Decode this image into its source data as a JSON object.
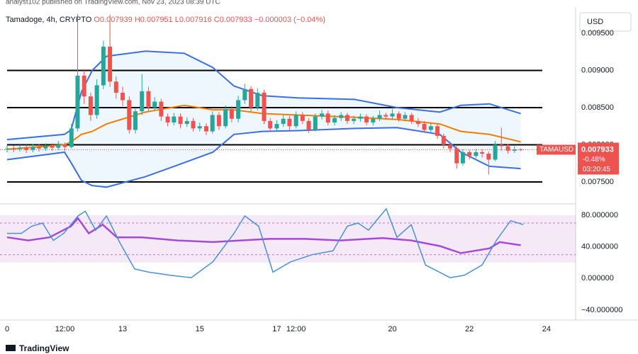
{
  "header": "analyst102 published on TradingView.com, Nov 23, 2023 08:39 UTC",
  "legend": {
    "symbol": "Tamadoge, 4h, CRYPTO",
    "open": "O0.007939",
    "high": "H0.007951",
    "low": "L0.007916",
    "close": "C0.007933",
    "change": "−0.000003 (−0.04%)"
  },
  "currency": "USD",
  "footer": "TradingView",
  "chart_data": [
    {
      "type": "candlestick",
      "up_color": "#26a69a",
      "down_color": "#ef5350",
      "x": [
        10,
        10.17,
        10.33,
        10.5,
        10.67,
        10.83,
        11,
        11.17,
        11.33,
        11.5,
        11.67,
        11.83,
        12,
        12.17,
        12.33,
        12.5,
        12.67,
        12.83,
        13,
        13.17,
        13.33,
        13.5,
        13.67,
        13.83,
        14,
        14.17,
        14.33,
        14.5,
        14.67,
        14.83,
        15,
        15.17,
        15.33,
        15.5,
        15.67,
        15.83,
        16,
        16.17,
        16.33,
        16.5,
        16.67,
        16.83,
        17,
        17.17,
        17.33,
        17.5,
        17.67,
        17.83,
        18,
        18.17,
        18.33,
        18.5,
        18.67,
        18.83,
        19,
        19.17,
        19.33,
        19.5,
        19.67,
        19.83,
        20,
        20.17,
        20.33,
        20.5,
        20.67,
        20.83,
        21,
        21.17,
        21.33,
        21.5,
        21.67,
        21.83,
        22,
        22.17,
        22.33,
        22.5,
        22.67,
        22.83,
        23,
        23.17,
        23.33
      ],
      "open": [
        0.00794,
        0.00795,
        0.00794,
        0.00796,
        0.00793,
        0.00797,
        0.00795,
        0.00798,
        0.00796,
        0.008,
        0.00797,
        0.00822,
        0.00893,
        0.00865,
        0.0084,
        0.0088,
        0.00932,
        0.00885,
        0.0087,
        0.0086,
        0.0082,
        0.00845,
        0.00872,
        0.0085,
        0.00858,
        0.00838,
        0.0083,
        0.00838,
        0.00828,
        0.00832,
        0.00822,
        0.00825,
        0.00818,
        0.0084,
        0.00825,
        0.00848,
        0.00835,
        0.0086,
        0.00875,
        0.0085,
        0.0087,
        0.00832,
        0.00822,
        0.00828,
        0.00835,
        0.00825,
        0.0084,
        0.00832,
        0.0082,
        0.00838,
        0.00842,
        0.0083,
        0.00836,
        0.0084,
        0.00832,
        0.00835,
        0.00838,
        0.0083,
        0.00835,
        0.0084,
        0.00838,
        0.00842,
        0.00835,
        0.0084,
        0.00832,
        0.00828,
        0.0082,
        0.00825,
        0.00812,
        0.008,
        0.00795,
        0.00775,
        0.0079,
        0.00785,
        0.0079,
        0.00788,
        0.0078,
        0.008,
        0.00798,
        0.00792,
        0.007939
      ],
      "high": [
        0.00799,
        0.00799,
        0.008,
        0.008,
        0.00801,
        0.00801,
        0.00802,
        0.00802,
        0.00805,
        0.00803,
        0.00828,
        0.00976,
        0.009,
        0.0087,
        0.00888,
        0.0094,
        0.00975,
        0.00892,
        0.00878,
        0.00865,
        0.0085,
        0.00895,
        0.00878,
        0.00864,
        0.00862,
        0.00842,
        0.00843,
        0.00842,
        0.00837,
        0.00836,
        0.0083,
        0.00829,
        0.00845,
        0.00844,
        0.00853,
        0.00852,
        0.00866,
        0.00882,
        0.00879,
        0.00876,
        0.00874,
        0.00836,
        0.00833,
        0.0084,
        0.00839,
        0.00845,
        0.00844,
        0.00836,
        0.00842,
        0.00847,
        0.00846,
        0.0084,
        0.00844,
        0.00843,
        0.00839,
        0.00842,
        0.00841,
        0.00839,
        0.00846,
        0.00843,
        0.00848,
        0.00845,
        0.00844,
        0.00843,
        0.00836,
        0.00832,
        0.00829,
        0.00828,
        0.00815,
        0.00804,
        0.00798,
        0.00794,
        0.00793,
        0.00794,
        0.00794,
        0.00791,
        0.00805,
        0.00823,
        0.00801,
        0.00798,
        0.007951
      ],
      "low": [
        0.0079,
        0.0079,
        0.00791,
        0.00789,
        0.0079,
        0.00791,
        0.00792,
        0.00792,
        0.00793,
        0.00792,
        0.00795,
        0.00818,
        0.00855,
        0.00832,
        0.00835,
        0.00875,
        0.00878,
        0.00862,
        0.00852,
        0.00815,
        0.00815,
        0.0084,
        0.00845,
        0.00846,
        0.00832,
        0.00825,
        0.00826,
        0.00822,
        0.00824,
        0.00818,
        0.00818,
        0.00813,
        0.00815,
        0.0082,
        0.00822,
        0.0083,
        0.0083,
        0.00855,
        0.00845,
        0.00846,
        0.00828,
        0.00818,
        0.00818,
        0.00824,
        0.0082,
        0.00822,
        0.00828,
        0.00816,
        0.00818,
        0.00834,
        0.00826,
        0.00826,
        0.00832,
        0.00828,
        0.00828,
        0.00831,
        0.00826,
        0.00826,
        0.00832,
        0.00834,
        0.00834,
        0.00831,
        0.00832,
        0.00828,
        0.00824,
        0.00816,
        0.00816,
        0.00808,
        0.00795,
        0.0079,
        0.00768,
        0.00772,
        0.0078,
        0.00782,
        0.00783,
        0.0076,
        0.00778,
        0.00792,
        0.00788,
        0.00789,
        0.007916
      ],
      "close": [
        0.00795,
        0.00794,
        0.00796,
        0.00793,
        0.00797,
        0.00795,
        0.00798,
        0.00796,
        0.008,
        0.00797,
        0.00822,
        0.00893,
        0.00865,
        0.0084,
        0.0088,
        0.00932,
        0.00885,
        0.0087,
        0.0086,
        0.0082,
        0.00845,
        0.00872,
        0.0085,
        0.00858,
        0.00838,
        0.0083,
        0.00838,
        0.00828,
        0.00832,
        0.00822,
        0.00825,
        0.00818,
        0.0084,
        0.00825,
        0.00848,
        0.00835,
        0.0086,
        0.00875,
        0.0085,
        0.0087,
        0.00832,
        0.00822,
        0.00828,
        0.00835,
        0.00825,
        0.0084,
        0.00832,
        0.0082,
        0.00838,
        0.00842,
        0.0083,
        0.00836,
        0.0084,
        0.00832,
        0.00835,
        0.00838,
        0.0083,
        0.00835,
        0.0084,
        0.00838,
        0.00842,
        0.00835,
        0.0084,
        0.00832,
        0.00828,
        0.0082,
        0.00825,
        0.00812,
        0.008,
        0.00795,
        0.00775,
        0.0079,
        0.00785,
        0.0079,
        0.00788,
        0.0078,
        0.008,
        0.00798,
        0.00792,
        0.007939,
        0.007933
      ],
      "series": [
        {
          "color": "#3b6fe3",
          "x": [
            10,
            11.49,
            11.66,
            11.93,
            12.21,
            12.58,
            13.59,
            14.6,
            15.34,
            15.89,
            16.63,
            17.55,
            19.02,
            20.12,
            21.23,
            21.78,
            22.52,
            23.33
          ],
          "values": [
            0.00807,
            0.00814,
            0.0082,
            0.00871,
            0.009,
            0.00919,
            0.00926,
            0.00923,
            0.00904,
            0.00879,
            0.00866,
            0.00863,
            0.00861,
            0.0085,
            0.00844,
            0.00853,
            0.00855,
            0.00842
          ]
        },
        {
          "color": "#f57c00",
          "x": [
            10,
            11.49,
            11.66,
            11.93,
            12.21,
            12.58,
            13.59,
            14.6,
            15.34,
            15.89,
            16.63,
            17.55,
            19.02,
            20.12,
            21.23,
            21.78,
            22.52,
            23.33
          ],
          "values": [
            0.00794,
            0.008,
            0.00804,
            0.00814,
            0.00818,
            0.00828,
            0.00844,
            0.00853,
            0.00847,
            0.00847,
            0.00842,
            0.0084,
            0.00837,
            0.00834,
            0.00828,
            0.00818,
            0.00814,
            0.00804
          ]
        },
        {
          "color": "#3b6fe3",
          "x": [
            10,
            11.49,
            11.66,
            11.93,
            12.21,
            12.58,
            13.59,
            14.6,
            15.34,
            15.89,
            16.63,
            17.55,
            19.02,
            20.12,
            21.23,
            21.78,
            22.52,
            23.33
          ],
          "values": [
            0.0078,
            0.0079,
            0.00776,
            0.00752,
            0.00745,
            0.00743,
            0.00757,
            0.00776,
            0.0079,
            0.00814,
            0.00818,
            0.00819,
            0.00822,
            0.00823,
            0.00814,
            0.0079,
            0.00771,
            0.00768
          ]
        }
      ],
      "band_fill": "#2196f3",
      "levels": [
        0.009,
        0.0085,
        0.008,
        0.0075
      ],
      "level_color": "#000000",
      "last_price": {
        "value": 0.007933,
        "label": "0.007933",
        "change": "-0.48%",
        "countdown": "03:20:45",
        "symbol": "TAMAUSD",
        "color": "#ef5350"
      },
      "xlim": [
        9.816,
        24.72
      ],
      "ylim": [
        0.007233,
        0.009757
      ],
      "yticks": [
        {
          "value": 0.0095,
          "label": "0.009500"
        },
        {
          "value": 0.009,
          "label": "0.009000"
        },
        {
          "value": 0.0085,
          "label": "0.008500"
        },
        {
          "value": 0.008,
          "label": "0.008000"
        },
        {
          "value": 0.0075,
          "label": "0.007500"
        }
      ]
    },
    {
      "type": "line",
      "series": [
        {
          "color": "#a64ad6",
          "x": [
            10,
            10.55,
            11.1,
            11.66,
            11.84,
            12.12,
            12.48,
            12.85,
            13.5,
            14.42,
            15.34,
            16.07,
            16.81,
            17.73,
            18.65,
            19.75,
            20.49,
            21.23,
            21.78,
            22.52,
            22.79,
            23.33
          ],
          "values": [
            52,
            48,
            52,
            66,
            76,
            57,
            68,
            52,
            52,
            48,
            46,
            48,
            50,
            50,
            48,
            51,
            48,
            41,
            32,
            38,
            46,
            42
          ]
        },
        {
          "color": "#4a90d9",
          "x": [
            10,
            10.37,
            10.64,
            10.92,
            11.2,
            11.47,
            11.84,
            12.03,
            12.3,
            12.58,
            12.94,
            13.31,
            13.68,
            14.23,
            14.78,
            15.34,
            15.89,
            16.17,
            16.53,
            16.9,
            17.36,
            17.91,
            18.46,
            18.83,
            19.11,
            19.38,
            19.84,
            20.12,
            20.49,
            20.86,
            21.5,
            21.87,
            22.33,
            22.7,
            23.07,
            23.4
          ],
          "values": [
            57,
            57,
            66,
            70,
            48,
            57,
            79,
            85,
            61,
            79,
            44,
            12,
            8,
            4,
            1,
            21,
            57,
            79,
            66,
            8,
            21,
            30,
            35,
            66,
            70,
            61,
            88,
            52,
            68,
            17,
            1,
            4,
            17,
            48,
            73,
            68
          ]
        }
      ],
      "band": [
        20,
        80
      ],
      "band_color": "#9c27b0",
      "dashed": [
        70,
        30
      ],
      "xlim": [
        9.816,
        24.72
      ],
      "ylim": [
        -50.7,
        92.4
      ],
      "yticks": [
        {
          "value": 80,
          "label": "80.000000"
        },
        {
          "value": 40,
          "label": "40.000000"
        },
        {
          "value": 0,
          "label": "0.000000"
        },
        {
          "value": -40,
          "label": "−40.000000"
        }
      ],
      "xticks": [
        {
          "value": 10,
          "label": "0"
        },
        {
          "value": 11.5,
          "label": "12:00"
        },
        13,
        15,
        17,
        {
          "value": 17.5,
          "label": "12:00"
        },
        20,
        22,
        24
      ]
    }
  ]
}
